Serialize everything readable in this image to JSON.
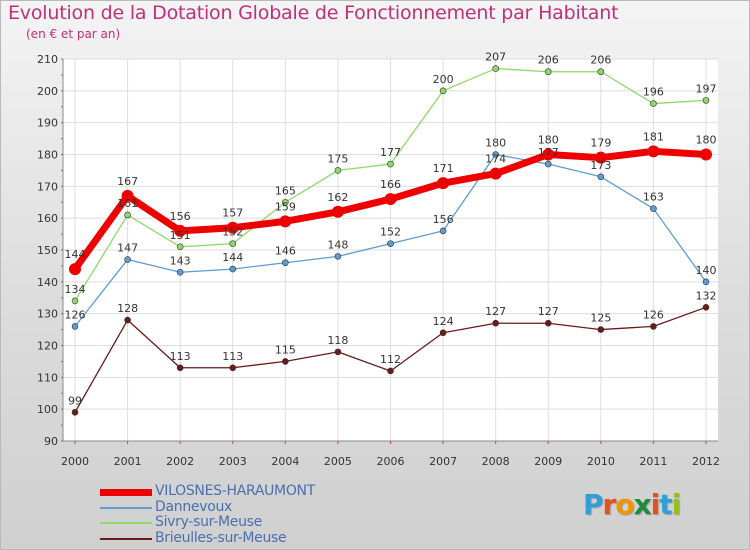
{
  "title": "Evolution de la Dotation Globale de Fonctionnement par Habitant",
  "subtitle": "(en € et par an)",
  "logo": {
    "letters": [
      "P",
      "r",
      "o",
      "x",
      "i",
      "t",
      "i"
    ],
    "colors": [
      "#2f9fd6",
      "#e94e1b",
      "#f29400",
      "#1d8c3f",
      "#e94e1b",
      "#2f9fd6",
      "#95c11f"
    ]
  },
  "chart_data": {
    "type": "line",
    "title": "Evolution de la Dotation Globale de Fonctionnement par Habitant",
    "subtitle": "(en € et par an)",
    "xlabel": "",
    "ylabel": "",
    "x": [
      "2000",
      "2001",
      "2002",
      "2003",
      "2004",
      "2005",
      "2006",
      "2007",
      "2008",
      "2009",
      "2010",
      "2011",
      "2012"
    ],
    "yticks": [
      90,
      100,
      110,
      120,
      130,
      140,
      150,
      160,
      170,
      180,
      190,
      200,
      210
    ],
    "ylim": [
      90,
      210
    ],
    "grid": true,
    "legend_position": "bottom-left",
    "series": [
      {
        "name": "VILOSNES-HARAUMONT",
        "color": "#ee0000",
        "width": 7,
        "values": [
          144,
          167,
          156,
          157,
          159,
          162,
          166,
          171,
          174,
          180,
          179,
          181,
          180
        ]
      },
      {
        "name": "Dannevoux",
        "color": "#5f9bd0",
        "width": 1.3,
        "values": [
          126,
          147,
          143,
          144,
          146,
          148,
          152,
          156,
          180,
          177,
          173,
          163,
          140
        ]
      },
      {
        "name": "Sivry-sur-Meuse",
        "color": "#8ed86a",
        "width": 1.3,
        "values": [
          134,
          161,
          151,
          152,
          165,
          175,
          177,
          200,
          207,
          206,
          206,
          196,
          197
        ]
      },
      {
        "name": "Brieulles-sur-Meuse",
        "color": "#6b1a1a",
        "width": 1.3,
        "values": [
          99,
          128,
          113,
          113,
          115,
          118,
          112,
          124,
          127,
          127,
          125,
          126,
          132
        ]
      }
    ]
  }
}
